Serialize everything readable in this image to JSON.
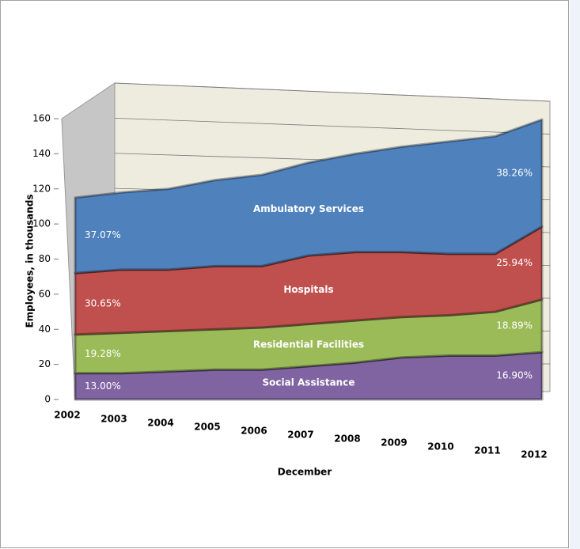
{
  "chart_data": {
    "type": "stacked_area",
    "x_label": "December",
    "y_label": "Employees, in thousands",
    "categories": [
      "2002",
      "2003",
      "2004",
      "2005",
      "2006",
      "2007",
      "2008",
      "2009",
      "2010",
      "2011",
      "2012"
    ],
    "ylim": [
      0,
      160
    ],
    "yticks": [
      0,
      20,
      40,
      60,
      80,
      100,
      120,
      140,
      160
    ],
    "grid": true,
    "series": [
      {
        "name": "Social Assistance",
        "color": "#8064a2",
        "values": [
          15,
          15,
          16,
          17,
          17,
          19,
          21,
          24,
          25,
          25,
          27
        ],
        "share_labels": [
          "13.00%",
          "16.90%"
        ]
      },
      {
        "name": "Residential Facilities",
        "color": "#9bbb59",
        "values": [
          22,
          23,
          23,
          23,
          24,
          24,
          24,
          23,
          23,
          25,
          30
        ],
        "share_labels": [
          "19.28%",
          "18.89%"
        ]
      },
      {
        "name": "Hospitals",
        "color": "#c0504d",
        "values": [
          35,
          36,
          35,
          36,
          35,
          39,
          39,
          37,
          35,
          33,
          41.5
        ],
        "share_labels": [
          "30.65%",
          "25.94%"
        ]
      },
      {
        "name": "Ambulatory Services",
        "color": "#4f81bd",
        "values": [
          43,
          44,
          46,
          49,
          52,
          53,
          56,
          60,
          64,
          67,
          61
        ],
        "share_labels": [
          "37.07%",
          "38.26%"
        ]
      }
    ]
  }
}
